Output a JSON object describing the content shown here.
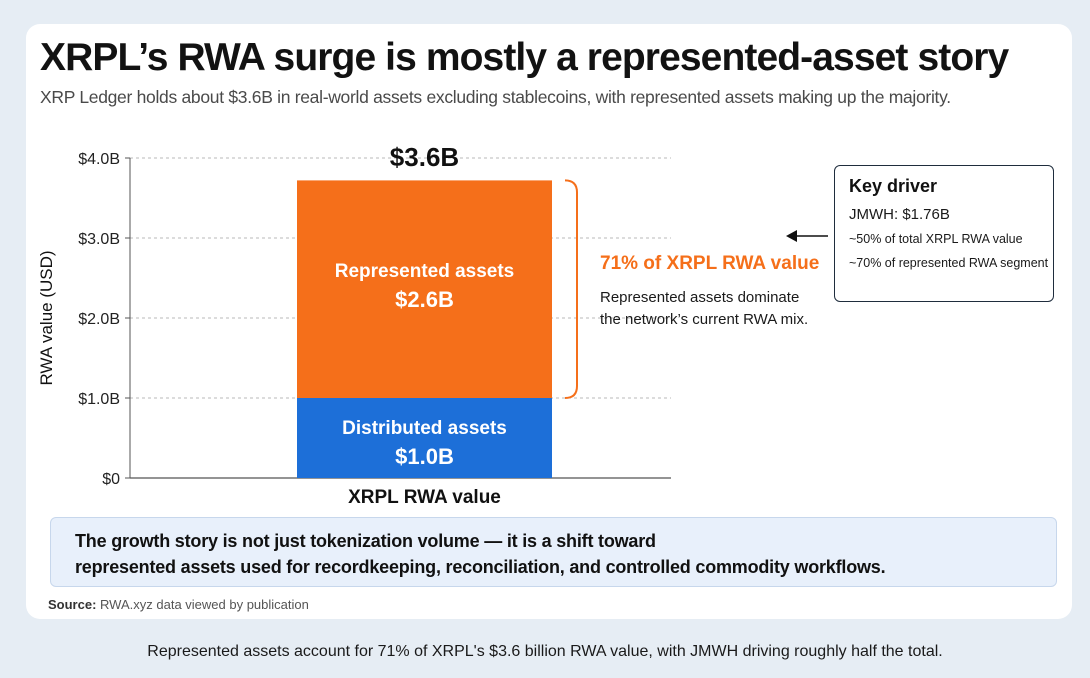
{
  "card": {
    "title": "XRPL’s RWA surge is mostly a represented-asset story",
    "subtitle": "XRP Ledger holds about $3.6B in real-world assets excluding stablecoins, with represented assets making up the majority."
  },
  "chart_data": {
    "type": "bar",
    "stacked": true,
    "categories": [
      "XRPL RWA value"
    ],
    "series": [
      {
        "name": "Distributed assets",
        "values": [
          1.0
        ],
        "label": "$1.0B",
        "color": "#1d6fd8"
      },
      {
        "name": "Represented assets",
        "values": [
          2.6
        ],
        "label": "$2.6B",
        "color": "#f56f1a"
      }
    ],
    "total_label": "$3.6B",
    "total_value": 3.72,
    "xlabel": "XRPL RWA value",
    "ylabel": "RWA value (USD)",
    "ylim": [
      0,
      4.0
    ],
    "yticks": [
      {
        "value": 0,
        "label": "$0"
      },
      {
        "value": 1,
        "label": "$1.0B"
      },
      {
        "value": 2,
        "label": "$2.0B"
      },
      {
        "value": 3,
        "label": "$3.0B"
      },
      {
        "value": 4,
        "label": "$4.0B"
      }
    ],
    "grid": true,
    "annotation": {
      "headline": "71% of XRPL RWA value",
      "line1": "Represented assets dominate",
      "line2": "the network’s current RWA mix.",
      "color": "#f56f1a"
    }
  },
  "callout": {
    "title": "Key driver",
    "line1": "JMWH: $1.76B",
    "line2": "~50% of total XRPL RWA value",
    "line3": "~70% of represented RWA segment"
  },
  "banner": {
    "line1": "The growth story is not just tokenization volume — it is a shift toward",
    "line2": "represented assets used for recordkeeping, reconciliation, and controlled commodity workflows."
  },
  "source": {
    "label": "Source:",
    "text": "RWA.xyz data viewed by publication"
  },
  "caption": "Represented assets account for 71% of XRPL's $3.6 billion RWA value, with JMWH driving roughly half the total."
}
